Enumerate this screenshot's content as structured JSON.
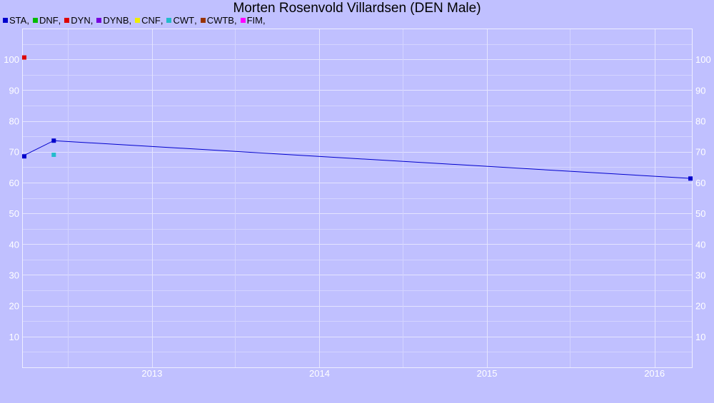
{
  "chart_data": {
    "type": "line",
    "title": "Morten Rosenvold Villardsen (DEN Male)",
    "xlabel": "",
    "ylabel": "",
    "xlim": [
      "2012-03-24",
      "2016-03-24"
    ],
    "ylim": [
      0,
      110
    ],
    "x_ticks": [
      "2013",
      "2014",
      "2015",
      "2016"
    ],
    "y_ticks": [
      10,
      20,
      30,
      40,
      50,
      60,
      70,
      80,
      90,
      100
    ],
    "grid": true,
    "legend_position": "top-left",
    "series": [
      {
        "name": "STA",
        "color": "#0000cc",
        "connected": true,
        "points": [
          {
            "x": "2012-03-24",
            "y": 68.5
          },
          {
            "x": "2012-06-01",
            "y": 73.6
          },
          {
            "x": "2016-03-24",
            "y": 61.3
          }
        ]
      },
      {
        "name": "DNF",
        "color": "#00bb00",
        "connected": false,
        "points": []
      },
      {
        "name": "DYN",
        "color": "#dd0000",
        "connected": false,
        "points": [
          {
            "x": "2012-03-24",
            "y": 100.6
          }
        ]
      },
      {
        "name": "DYNB",
        "color": "#7700dd",
        "connected": false,
        "points": []
      },
      {
        "name": "CNF",
        "color": "#eeee00",
        "connected": false,
        "points": []
      },
      {
        "name": "CWT",
        "color": "#22bbcc",
        "connected": false,
        "points": [
          {
            "x": "2012-06-01",
            "y": 69
          }
        ]
      },
      {
        "name": "CWTB",
        "color": "#993300",
        "connected": false,
        "points": []
      },
      {
        "name": "FIM",
        "color": "#ff00ff",
        "connected": false,
        "points": []
      }
    ]
  }
}
